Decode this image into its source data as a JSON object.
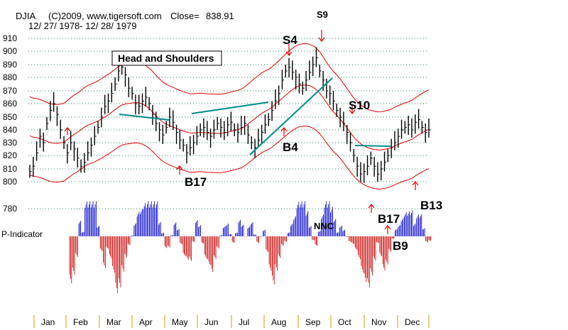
{
  "header": {
    "symbol": "DJIA",
    "copyright": "(C)2009, www.tigersoft.com",
    "close_label": "Close=",
    "close_value": "838.91",
    "date_range": "12/ 27/ 1978- 12/ 28/ 1979"
  },
  "indicator_label": "P-Indicator",
  "chart_data": {
    "type": "ohlc",
    "y_ticks": [
      780,
      800,
      810,
      820,
      830,
      840,
      850,
      860,
      870,
      880,
      890,
      900,
      910
    ],
    "ylim": [
      780,
      910
    ],
    "months": [
      "Jan",
      "Feb",
      "Mar",
      "Apr",
      "May",
      "Jun",
      "Jul",
      "Aug",
      "Sep",
      "Oct",
      "Nov",
      "Dec"
    ],
    "grid": "dotted-green",
    "price_closes": [
      808,
      812,
      822,
      835,
      830,
      845,
      855,
      860,
      852,
      840,
      830,
      822,
      830,
      825,
      818,
      812,
      815,
      822,
      828,
      835,
      842,
      850,
      858,
      862,
      868,
      875,
      885,
      888,
      882,
      872,
      868,
      860,
      858,
      862,
      865,
      860,
      852,
      845,
      840,
      836,
      842,
      850,
      846,
      838,
      832,
      828,
      822,
      826,
      830,
      835,
      840,
      842,
      838,
      835,
      840,
      845,
      842,
      838,
      844,
      846,
      840,
      838,
      842,
      845,
      836,
      830,
      826,
      832,
      838,
      844,
      848,
      855,
      862,
      868,
      878,
      885,
      888,
      884,
      880,
      875,
      872,
      878,
      884,
      890,
      895,
      885,
      878,
      870,
      868,
      862,
      855,
      850,
      845,
      838,
      830,
      820,
      812,
      806,
      808,
      812,
      818,
      812,
      806,
      810,
      815,
      820,
      826,
      830,
      835,
      840,
      842,
      844,
      840,
      846,
      848,
      842,
      838,
      840
    ],
    "signals": [
      {
        "label": "S9",
        "direction": "down"
      },
      {
        "label": "S4",
        "direction": "down"
      },
      {
        "label": "S10",
        "direction": "down"
      },
      {
        "label": "B4",
        "direction": "up"
      },
      {
        "label": "B17",
        "direction": "up"
      },
      {
        "label": "B17",
        "direction": "up"
      },
      {
        "label": "B9",
        "direction": "up"
      },
      {
        "label": "B13",
        "direction": "up"
      }
    ],
    "annotations": [
      "Head and Shoulders",
      "NNC"
    ]
  }
}
